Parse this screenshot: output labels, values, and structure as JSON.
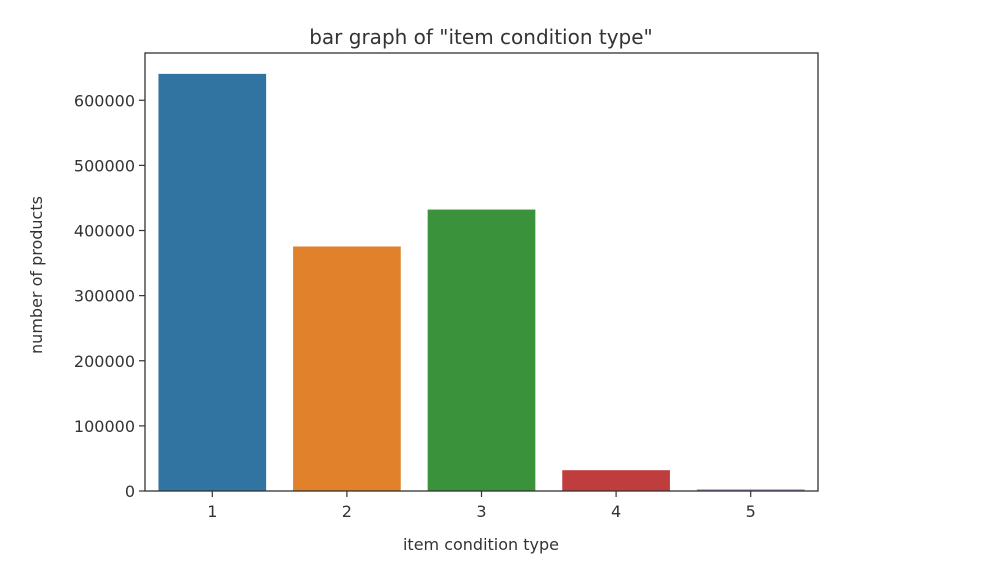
{
  "chart_data": {
    "type": "bar",
    "title": "bar graph of \"item condition type\"",
    "xlabel": "item condition type",
    "ylabel": "number of products",
    "categories": [
      "1",
      "2",
      "3",
      "4",
      "5"
    ],
    "values": [
      640549,
      375479,
      432161,
      31962,
      2384
    ],
    "ylim": [
      0,
      672576
    ],
    "yticks": [
      0,
      100000,
      200000,
      300000,
      400000,
      500000,
      600000
    ],
    "ytick_labels": [
      "0",
      "100000",
      "200000",
      "300000",
      "400000",
      "500000",
      "600000"
    ],
    "colors": [
      "#3274a1",
      "#e1812c",
      "#3a923a",
      "#c03d3e",
      "#9372b2"
    ],
    "grid": false,
    "legend": "none"
  }
}
